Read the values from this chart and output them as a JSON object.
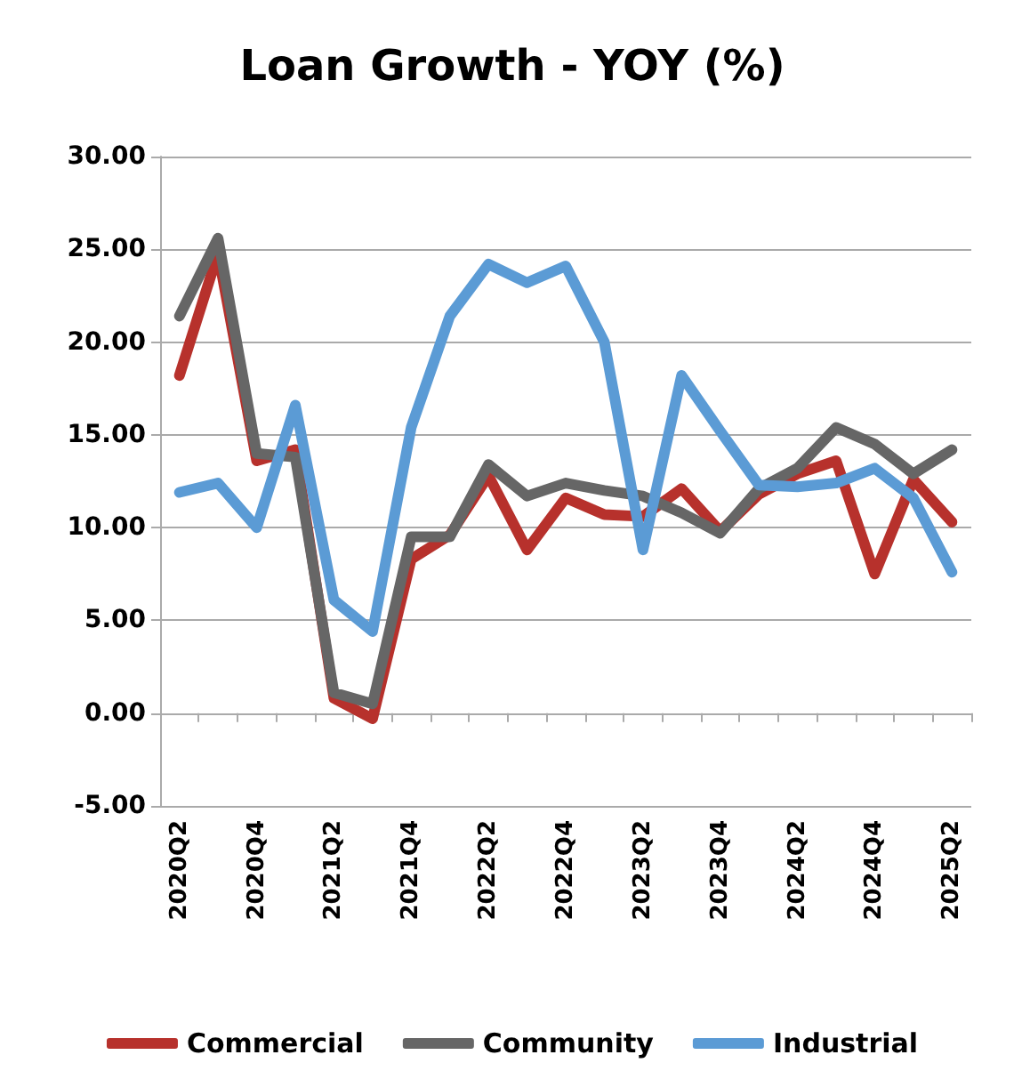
{
  "chart_data": {
    "type": "line",
    "title": "Loan Growth - YOY (%)",
    "categories": [
      "2020Q2",
      null,
      "2020Q4",
      null,
      "2021Q2",
      null,
      "2021Q4",
      null,
      "2022Q2",
      null,
      "2022Q4",
      null,
      "2023Q2",
      null,
      "2023Q4",
      null,
      "2024Q2",
      null,
      "2024Q4",
      null,
      "2025Q2"
    ],
    "series": [
      {
        "name": "Commercial",
        "color": "#b7312c",
        "values": [
          18.2,
          24.8,
          13.6,
          14.2,
          0.8,
          -0.3,
          8.3,
          9.6,
          12.8,
          8.8,
          11.6,
          10.7,
          10.6,
          12.1,
          9.8,
          11.8,
          12.9,
          13.6,
          7.5,
          12.6,
          10.3
        ]
      },
      {
        "name": "Community",
        "color": "#666666",
        "values": [
          21.4,
          25.6,
          14.0,
          13.8,
          1.1,
          0.5,
          9.5,
          9.5,
          13.4,
          11.7,
          12.4,
          12.0,
          11.7,
          10.8,
          9.7,
          12.1,
          13.2,
          15.4,
          14.5,
          12.9,
          14.2
        ]
      },
      {
        "name": "Industrial",
        "color": "#5b9bd5",
        "values": [
          11.9,
          12.4,
          10.0,
          16.6,
          6.1,
          4.4,
          15.4,
          21.4,
          24.2,
          23.2,
          24.1,
          20.0,
          8.8,
          18.2,
          15.2,
          12.3,
          12.2,
          12.4,
          13.2,
          11.6,
          7.6
        ]
      }
    ],
    "ylim": [
      -5,
      30
    ],
    "yticks": [
      {
        "value": -5,
        "label": "-5.00"
      },
      {
        "value": 0,
        "label": "0.00"
      },
      {
        "value": 5,
        "label": "5.00"
      },
      {
        "value": 10,
        "label": "10.00"
      },
      {
        "value": 15,
        "label": "15.00"
      },
      {
        "value": 20,
        "label": "20.00"
      },
      {
        "value": 25,
        "label": "25.00"
      },
      {
        "value": 30,
        "label": "30.00"
      }
    ],
    "grid": "y",
    "legend": "bottom",
    "marker": "none",
    "line_style": "solid"
  }
}
